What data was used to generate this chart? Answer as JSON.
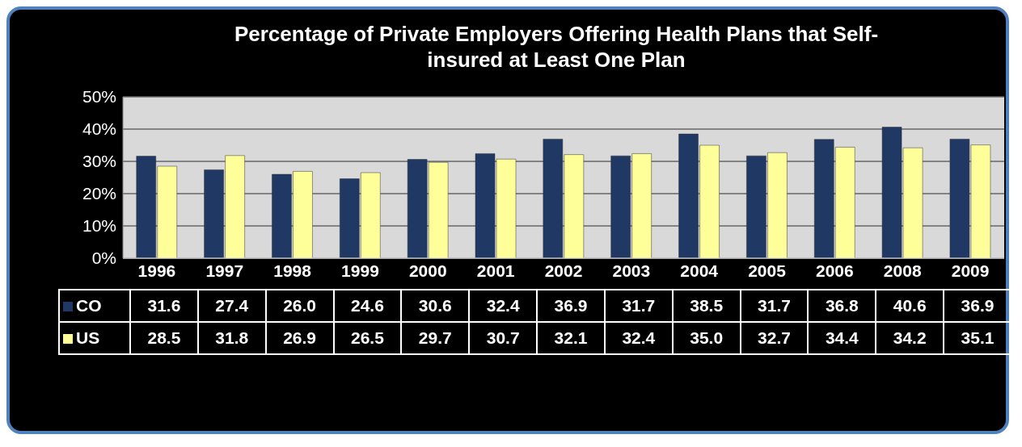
{
  "chart_data": {
    "type": "bar",
    "title": "Percentage of Private Employers Offering Health Plans that Self-insured at Least One Plan",
    "categories": [
      "1996",
      "1997",
      "1998",
      "1999",
      "2000",
      "2001",
      "2002",
      "2003",
      "2004",
      "2005",
      "2006",
      "2008",
      "2009"
    ],
    "series": [
      {
        "name": "CO",
        "color": "#1f3864",
        "values": [
          31.6,
          27.4,
          26.0,
          24.6,
          30.6,
          32.4,
          36.9,
          31.7,
          38.5,
          31.7,
          36.8,
          40.6,
          36.9
        ],
        "value_labels": [
          "31.6",
          "27.4",
          "26.0",
          "24.6",
          "30.6",
          "32.4",
          "36.9",
          "31.7",
          "38.5",
          "31.7",
          "36.8",
          "40.6",
          "36.9"
        ]
      },
      {
        "name": "US",
        "color": "#ffff99",
        "values": [
          28.5,
          31.8,
          26.9,
          26.5,
          29.7,
          30.7,
          32.1,
          32.4,
          35.0,
          32.7,
          34.4,
          34.2,
          35.1
        ],
        "value_labels": [
          "28.5",
          "31.8",
          "26.9",
          "26.5",
          "29.7",
          "30.7",
          "32.1",
          "32.4",
          "35.0",
          "32.7",
          "34.4",
          "34.2",
          "35.1"
        ]
      }
    ],
    "ylim": [
      0,
      50
    ],
    "yticks": [
      {
        "value": 0,
        "label": "0%"
      },
      {
        "value": 10,
        "label": "10%"
      },
      {
        "value": 20,
        "label": "20%"
      },
      {
        "value": 30,
        "label": "30%"
      },
      {
        "value": 40,
        "label": "40%"
      },
      {
        "value": 50,
        "label": "50%"
      }
    ],
    "grid": "y",
    "legend": "bottom"
  }
}
